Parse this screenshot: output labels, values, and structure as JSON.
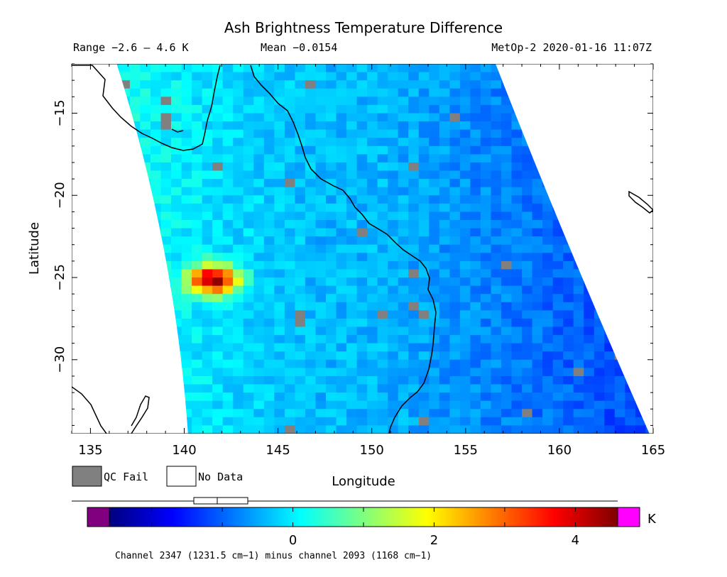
{
  "chart_data": {
    "type": "heatmap",
    "title": "Ash Brightness Temperature Difference",
    "subtitle_range": "Range −2.6 – 4.6 K",
    "subtitle_mean": "Mean −0.0154",
    "subtitle_source": "MetOp-2 2020-01-16 11:07Z",
    "xlabel": "Longitude",
    "ylabel": "Latitude",
    "xlim": [
      134,
      165
    ],
    "ylim": [
      -34.5,
      -12
    ],
    "x_ticks": [
      {
        "value": 135,
        "label": "135"
      },
      {
        "value": 140,
        "label": "140"
      },
      {
        "value": 145,
        "label": "145"
      },
      {
        "value": 150,
        "label": "150"
      },
      {
        "value": 155,
        "label": "155"
      },
      {
        "value": 160,
        "label": "160"
      },
      {
        "value": 165,
        "label": "165"
      }
    ],
    "y_ticks": [
      {
        "value": -15,
        "label": "−15"
      },
      {
        "value": -20,
        "label": "−20"
      },
      {
        "value": -25,
        "label": "−25"
      },
      {
        "value": -30,
        "label": "−30"
      }
    ],
    "legend": [
      {
        "label": "QC Fail",
        "color": "#808080"
      },
      {
        "label": "No Data",
        "color": "#ffffff"
      }
    ],
    "colorbar": {
      "min": -2.6,
      "max": 4.6,
      "ticks": [
        {
          "value": 0,
          "label": "0"
        },
        {
          "value": 2,
          "label": "2"
        },
        {
          "value": 4,
          "label": "4"
        }
      ],
      "unit": "K",
      "under_color": "#800080",
      "over_color": "#ff00ff",
      "stops": [
        "#00007f",
        "#0000ff",
        "#007fff",
        "#00ffff",
        "#7fff7f",
        "#ffff00",
        "#ff7f00",
        "#ff0000",
        "#7f0000"
      ]
    },
    "caption": "Channel 2347 (1231.5 cm−1) minus channel 2093 (1168 cm−1)",
    "swath_corners": {
      "top_left": [
        136.4,
        -12
      ],
      "top_right": [
        156.6,
        -12
      ],
      "bottom_left": [
        140.2,
        -34.5
      ],
      "bottom_right": [
        164.8,
        -34.5
      ]
    },
    "ash_plume": {
      "lon": 141.3,
      "lat": -24.9,
      "peak_value": 4.2
    },
    "background_value": -0.4
  },
  "colors": {
    "coastline": "#000000",
    "qc_fail": "#808080"
  }
}
